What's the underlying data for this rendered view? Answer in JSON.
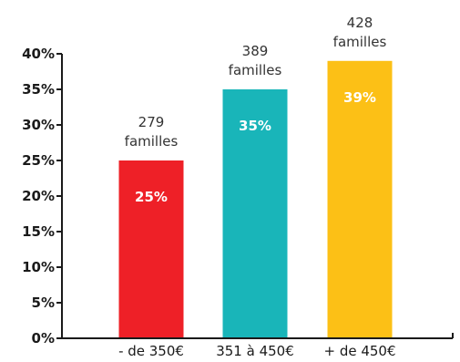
{
  "chart_data": {
    "type": "bar",
    "categories": [
      "- de 350€",
      "351 à 450€",
      "+ de 450€"
    ],
    "values": [
      25,
      35,
      39
    ],
    "value_labels": [
      "25%",
      "35%",
      "39%"
    ],
    "top_labels": [
      [
        "279",
        "familles"
      ],
      [
        "389",
        "familles"
      ],
      [
        "428",
        "familles"
      ]
    ],
    "ylim": [
      0,
      40
    ],
    "yticks": [
      "0%",
      "5%",
      "10%",
      "15%",
      "20%",
      "25%",
      "30%",
      "35%",
      "40%"
    ],
    "ytick_values": [
      0,
      5,
      10,
      15,
      20,
      25,
      30,
      35,
      40
    ],
    "grid": false,
    "colors": [
      "#ee2027",
      "#19b5b9",
      "#fcc016"
    ],
    "axis_color": "#1a1a1a"
  }
}
